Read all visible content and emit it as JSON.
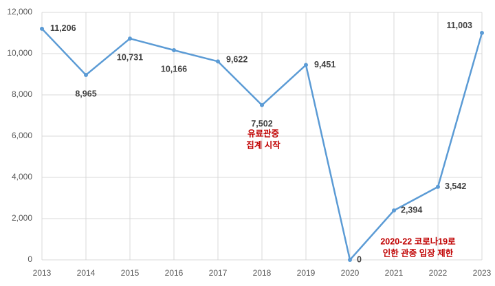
{
  "chart_data": {
    "type": "line",
    "categories": [
      "2013",
      "2014",
      "2015",
      "2016",
      "2017",
      "2018",
      "2019",
      "2020",
      "2021",
      "2022",
      "2023"
    ],
    "series": [
      {
        "color": "#5b9bd5",
        "values": [
          11206,
          8965,
          10731,
          10166,
          9622,
          7502,
          9451,
          0,
          2394,
          3542,
          11003
        ],
        "value_labels": [
          "11,206",
          "8,965",
          "10,731",
          "10,166",
          "9,622",
          "7,502",
          "9,451",
          "0",
          "2,394",
          "3,542",
          "11,003"
        ]
      }
    ],
    "ylim": [
      0,
      12000
    ],
    "yticks": [
      0,
      {
        "value": 2000,
        "label": "2,000"
      },
      {
        "value": 4000,
        "label": "4,000"
      },
      {
        "value": 6000,
        "label": "6,000"
      },
      {
        "value": 8000,
        "label": "8,000"
      },
      {
        "value": 10000,
        "label": "10,000"
      },
      {
        "value": 12000,
        "label": "12,000"
      }
    ],
    "grid": true,
    "annotations": [
      {
        "lines": [
          "유료관중",
          "집계 시작"
        ],
        "color": "#c00000"
      },
      {
        "lines": [
          "2020-22 코로나19로",
          "인한 관중 입장 제한"
        ],
        "color": "#c00000"
      }
    ]
  }
}
